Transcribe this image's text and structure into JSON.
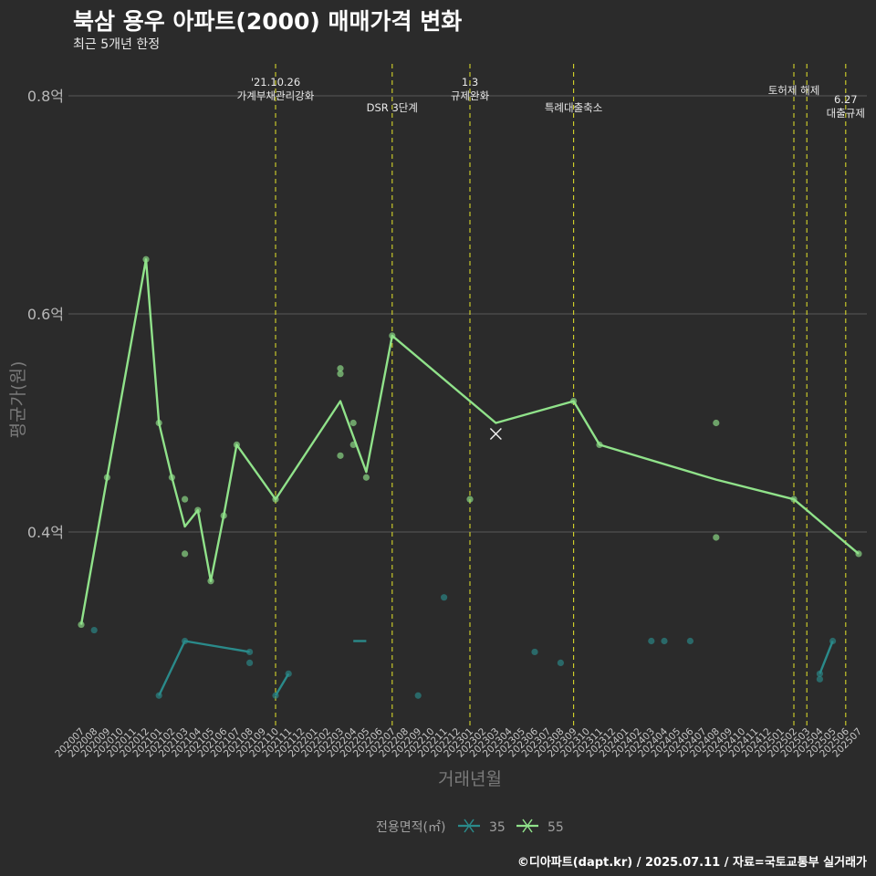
{
  "title": "북삼 용우 아파트(2000) 매매가격 변화",
  "subtitle": "최근 5개년 한정",
  "caption": "©디아파트(dapt.kr) / 2025.07.11 / 자료=국토교통부 실거래가",
  "chart_data": {
    "type": "line",
    "xlabel": "거래년월",
    "ylabel": "평균가(원)",
    "y_tick_values": [
      0.4,
      0.6,
      0.8
    ],
    "y_tick_labels": [
      "0.4억",
      "0.6억",
      "0.8억"
    ],
    "ylim": [
      0.23,
      0.83
    ],
    "grid": true,
    "categories": [
      "202007",
      "202008",
      "202009",
      "202010",
      "202011",
      "202012",
      "202101",
      "202102",
      "202103",
      "202104",
      "202105",
      "202106",
      "202107",
      "202108",
      "202109",
      "202110",
      "202111",
      "202112",
      "202201",
      "202202",
      "202203",
      "202204",
      "202205",
      "202206",
      "202207",
      "202208",
      "202209",
      "202210",
      "202211",
      "202212",
      "202301",
      "202302",
      "202303",
      "202304",
      "202305",
      "202306",
      "202307",
      "202308",
      "202309",
      "202310",
      "202311",
      "202312",
      "202401",
      "202402",
      "202403",
      "202404",
      "202405",
      "202406",
      "202407",
      "202408",
      "202409",
      "202410",
      "202411",
      "202412",
      "202501",
      "202502",
      "202503",
      "202504",
      "202505",
      "202506",
      "202507"
    ],
    "legend_title": "전용면적(㎡)",
    "legend_position": "bottom",
    "series": [
      {
        "name": "35",
        "color": "#2a8a8a",
        "line": [
          [
            "202101",
            0.25
          ],
          [
            "202103",
            0.3
          ],
          [
            "202108",
            0.29
          ]
        ],
        "line2": [
          [
            "202110",
            0.25
          ],
          [
            "202111",
            0.27
          ]
        ],
        "line3": [
          [
            "202204",
            0.3
          ],
          [
            "202205",
            0.3
          ]
        ],
        "line4": [
          [
            "202504",
            0.27
          ],
          [
            "202505",
            0.3
          ]
        ],
        "points": [
          [
            "202008",
            0.31
          ],
          [
            "202101",
            0.25
          ],
          [
            "202103",
            0.3
          ],
          [
            "202108",
            0.29
          ],
          [
            "202108",
            0.28
          ],
          [
            "202110",
            0.25
          ],
          [
            "202111",
            0.27
          ],
          [
            "202209",
            0.25
          ],
          [
            "202211",
            0.34
          ],
          [
            "202306",
            0.29
          ],
          [
            "202308",
            0.28
          ],
          [
            "202403",
            0.3
          ],
          [
            "202404",
            0.3
          ],
          [
            "202406",
            0.3
          ],
          [
            "202504",
            0.27
          ],
          [
            "202504",
            0.265
          ],
          [
            "202505",
            0.3
          ]
        ]
      },
      {
        "name": "55",
        "color": "#90e28a",
        "line": [
          [
            "202007",
            0.315
          ],
          [
            "202009",
            0.45
          ],
          [
            "202012",
            0.65
          ],
          [
            "202101",
            0.5
          ],
          [
            "202102",
            0.45
          ],
          [
            "202103",
            0.405
          ],
          [
            "202104",
            0.42
          ],
          [
            "202105",
            0.355
          ],
          [
            "202106",
            0.415
          ],
          [
            "202107",
            0.48
          ],
          [
            "202110",
            0.43
          ],
          [
            "202203",
            0.52
          ],
          [
            "202205",
            0.455
          ],
          [
            "202207",
            0.58
          ],
          [
            "202303",
            0.5
          ],
          [
            "202309",
            0.52
          ],
          [
            "202311",
            0.48
          ],
          [
            "202408",
            0.448
          ],
          [
            "202502",
            0.43
          ],
          [
            "202507",
            0.38
          ]
        ],
        "points": [
          [
            "202007",
            0.315
          ],
          [
            "202009",
            0.45
          ],
          [
            "202012",
            0.65
          ],
          [
            "202101",
            0.5
          ],
          [
            "202102",
            0.45
          ],
          [
            "202103",
            0.43
          ],
          [
            "202103",
            0.38
          ],
          [
            "202104",
            0.42
          ],
          [
            "202105",
            0.355
          ],
          [
            "202106",
            0.415
          ],
          [
            "202107",
            0.48
          ],
          [
            "202110",
            0.43
          ],
          [
            "202203",
            0.55
          ],
          [
            "202203",
            0.545
          ],
          [
            "202203",
            0.47
          ],
          [
            "202204",
            0.5
          ],
          [
            "202204",
            0.48
          ],
          [
            "202205",
            0.45
          ],
          [
            "202207",
            0.58
          ],
          [
            "202301",
            0.43
          ],
          [
            "202309",
            0.52
          ],
          [
            "202311",
            0.48
          ],
          [
            "202408",
            0.5
          ],
          [
            "202408",
            0.395
          ],
          [
            "202502",
            0.43
          ],
          [
            "202507",
            0.38
          ]
        ],
        "marker_x": [
          [
            "202303",
            0.49
          ]
        ]
      }
    ],
    "annotations": [
      {
        "x": "202110",
        "lines": [
          "'21.10.26",
          "가계부채관리강화"
        ]
      },
      {
        "x": "202207",
        "lines": [
          "DSR 3단계"
        ]
      },
      {
        "x": "202301",
        "lines": [
          "1.3",
          "규제완화"
        ]
      },
      {
        "x": "202309",
        "lines": [
          "특례대출축소"
        ]
      },
      {
        "x": "202502",
        "lines": [
          "토허제 해제"
        ]
      },
      {
        "x": "202503",
        "lines": [
          ""
        ]
      },
      {
        "x": "202506",
        "lines": [
          "6.27",
          "대출규제"
        ]
      }
    ]
  }
}
